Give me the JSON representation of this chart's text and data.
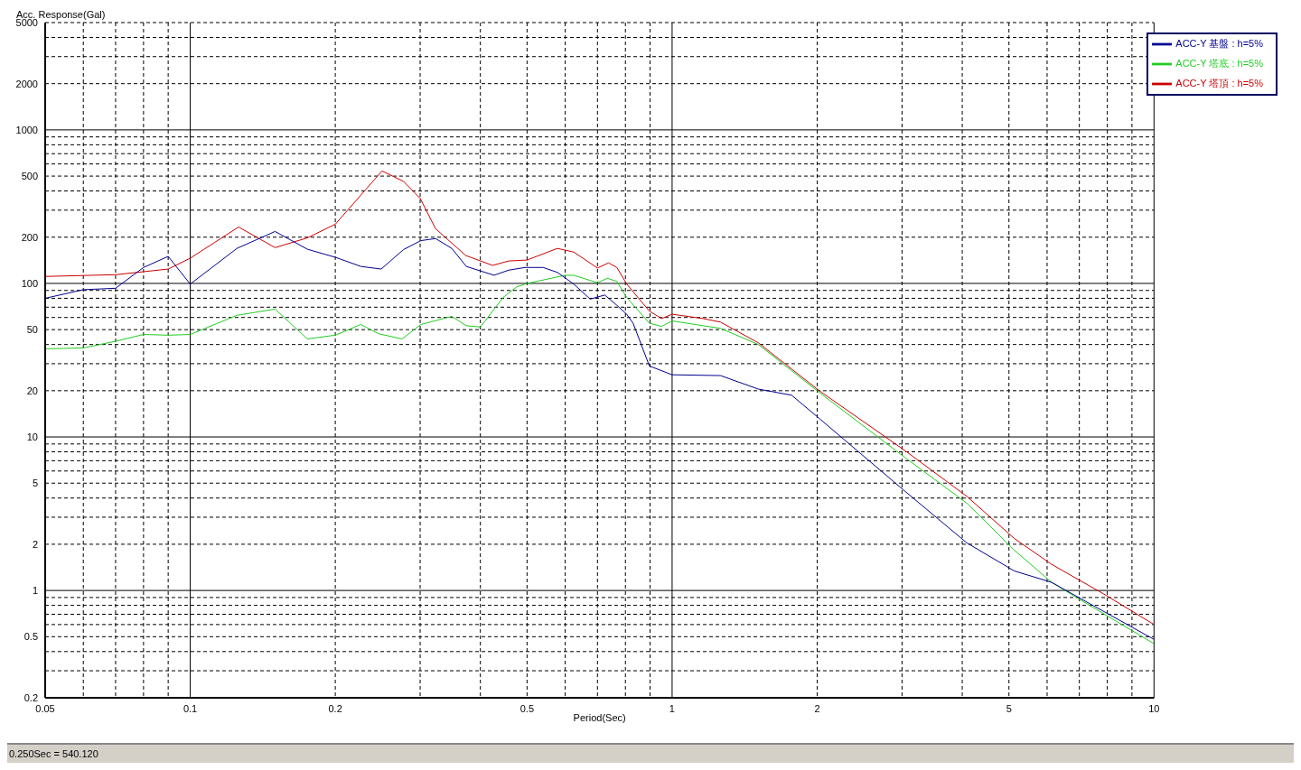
{
  "chart_data": {
    "type": "line",
    "xlabel": "Period(Sec)",
    "ylabel": "Acc. Response(Gal)",
    "log": "xy",
    "grid": true,
    "legend": "top right",
    "line_style": "solid",
    "marker": "none",
    "xlim": [
      0.05,
      10
    ],
    "ylim": [
      0.2,
      5000
    ],
    "xticks": [
      0.05,
      {
        "value": 0.06,
        "label": null
      },
      {
        "value": 0.07,
        "label": null
      },
      {
        "value": 0.08,
        "label": null
      },
      {
        "value": 0.09,
        "label": null
      },
      0.1,
      0.2,
      {
        "value": 0.3,
        "label": null
      },
      {
        "value": 0.4,
        "label": null
      },
      0.5,
      {
        "value": 0.6,
        "label": null
      },
      {
        "value": 0.7,
        "label": null
      },
      {
        "value": 0.8,
        "label": null
      },
      {
        "value": 0.9,
        "label": null
      },
      1,
      2,
      {
        "value": 3,
        "label": null
      },
      {
        "value": 4,
        "label": null
      },
      5,
      {
        "value": 6,
        "label": null
      },
      {
        "value": 7,
        "label": null
      },
      {
        "value": 8,
        "label": null
      },
      {
        "value": 9,
        "label": null
      },
      10
    ],
    "yticks": [
      0.2,
      {
        "value": 0.3,
        "label": null
      },
      {
        "value": 0.4,
        "label": null
      },
      0.5,
      {
        "value": 0.6,
        "label": null
      },
      {
        "value": 0.7,
        "label": null
      },
      {
        "value": 0.8,
        "label": null
      },
      {
        "value": 0.9,
        "label": null
      },
      1,
      2,
      {
        "value": 3,
        "label": null
      },
      {
        "value": 4,
        "label": null
      },
      5,
      {
        "value": 6,
        "label": null
      },
      {
        "value": 7,
        "label": null
      },
      {
        "value": 8,
        "label": null
      },
      {
        "value": 9,
        "label": null
      },
      10,
      20,
      {
        "value": 30,
        "label": null
      },
      {
        "value": 40,
        "label": null
      },
      50,
      {
        "value": 60,
        "label": null
      },
      {
        "value": 70,
        "label": null
      },
      {
        "value": 80,
        "label": null
      },
      {
        "value": 90,
        "label": null
      },
      100,
      200,
      {
        "value": 300,
        "label": null
      },
      {
        "value": 400,
        "label": null
      },
      500,
      {
        "value": 600,
        "label": null
      },
      {
        "value": 700,
        "label": null
      },
      {
        "value": 800,
        "label": null
      },
      {
        "value": 900,
        "label": null
      },
      1000,
      2000,
      {
        "value": 3000,
        "label": null
      },
      {
        "value": 4000,
        "label": null
      },
      5000
    ],
    "annotations": [
      "0.250Sec = 540.120"
    ],
    "series": [
      {
        "name": "ACC-Y 塔頂 : h=5%",
        "color": "#cc0000",
        "x": [
          0.05,
          0.07,
          0.09,
          0.1,
          0.126,
          0.15,
          0.175,
          0.2,
          0.25,
          0.277,
          0.3,
          0.323,
          0.373,
          0.424,
          0.458,
          0.5,
          0.578,
          0.625,
          0.7,
          0.738,
          0.768,
          0.805,
          0.897,
          0.951,
          1.0,
          1.16,
          1.26,
          1.51,
          2.02,
          3.05,
          4.09,
          5.13,
          6.13,
          7.86,
          10
        ],
        "values": [
          111,
          114,
          124,
          146,
          233,
          171,
          198,
          243,
          540,
          462,
          358,
          227,
          152,
          131,
          140,
          142,
          169,
          160,
          126,
          136,
          127,
          99,
          66,
          59,
          63,
          59,
          56,
          41,
          20,
          8.1,
          4.1,
          2.18,
          1.48,
          0.95,
          0.6
        ]
      },
      {
        "name": "ACC-Y 塔底 : h=5%",
        "color": "#22cc22",
        "x": [
          0.05,
          0.06,
          0.07,
          0.08,
          0.09,
          0.1,
          0.125,
          0.15,
          0.175,
          0.2,
          0.226,
          0.246,
          0.275,
          0.301,
          0.349,
          0.374,
          0.4,
          0.446,
          0.476,
          0.5,
          0.6,
          0.625,
          0.7,
          0.734,
          0.768,
          0.805,
          0.897,
          0.951,
          1.0,
          1.16,
          1.26,
          1.51,
          2.02,
          3.05,
          4.09,
          5.13,
          6.13,
          7.16,
          10
        ],
        "values": [
          37.5,
          38,
          42,
          46.5,
          46,
          46.5,
          62,
          68,
          43.5,
          46,
          54,
          47,
          43.5,
          54,
          61,
          53,
          52,
          81,
          95,
          100,
          113,
          113,
          101,
          108,
          103,
          81,
          55,
          52.5,
          57,
          53,
          51,
          40,
          19.5,
          7.3,
          3.7,
          1.83,
          1.13,
          0.84,
          0.45
        ]
      },
      {
        "name": "ACC-Y 基盤 : h=5%",
        "color": "#000090",
        "x": [
          0.05,
          0.06,
          0.07,
          0.08,
          0.09,
          0.1,
          0.125,
          0.15,
          0.175,
          0.2,
          0.226,
          0.249,
          0.277,
          0.301,
          0.323,
          0.349,
          0.374,
          0.427,
          0.458,
          0.495,
          0.54,
          0.578,
          0.625,
          0.676,
          0.725,
          0.768,
          0.805,
          0.83,
          0.897,
          1.0,
          1.26,
          1.51,
          1.77,
          2.02,
          3.05,
          4.09,
          5.13,
          6.13,
          7.16,
          10
        ],
        "values": [
          80,
          91,
          93,
          127,
          150,
          99,
          169,
          218,
          167,
          148,
          129,
          124,
          166,
          190,
          196,
          169,
          129,
          113,
          122,
          127,
          127,
          118,
          99,
          79,
          84,
          72,
          63,
          55,
          29,
          25.4,
          25.1,
          20.5,
          18.7,
          13.2,
          4.4,
          2.04,
          1.34,
          1.13,
          0.86,
          0.48
        ]
      }
    ]
  }
}
